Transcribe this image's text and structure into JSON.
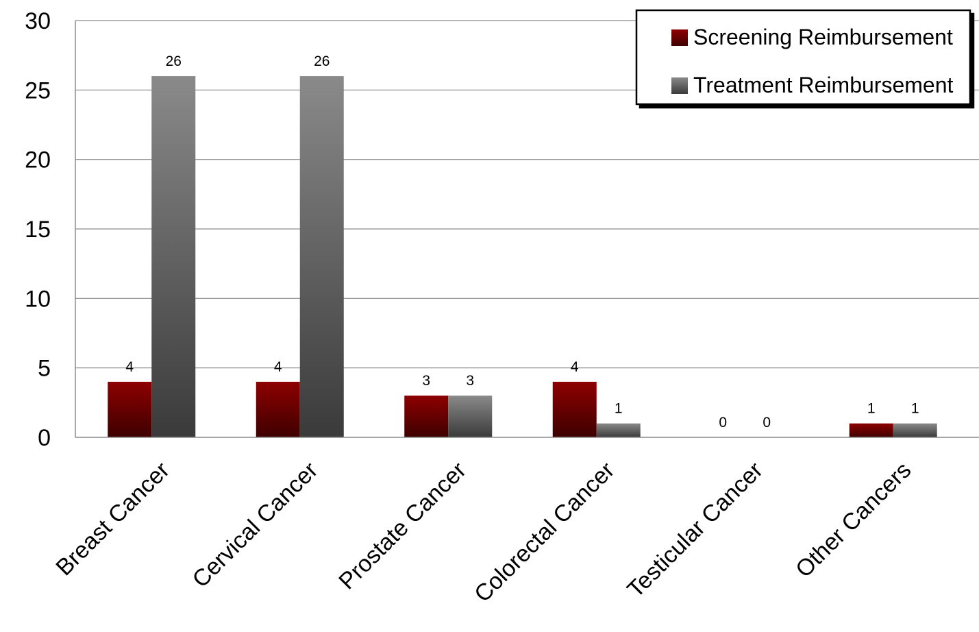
{
  "chart_data": {
    "type": "bar",
    "categories": [
      "Breast Cancer",
      "Cervical Cancer",
      "Prostate Cancer",
      "Colorectal Cancer",
      "Testicular Cancer",
      "Other Cancers"
    ],
    "series": [
      {
        "name": "Screening Reimbursement",
        "values": [
          4,
          4,
          3,
          4,
          0,
          1
        ],
        "color": "#8b0000"
      },
      {
        "name": "Treatment Reimbursement",
        "values": [
          26,
          26,
          3,
          1,
          0,
          1
        ],
        "color": "#7a7a7a"
      }
    ],
    "title": "",
    "xlabel": "",
    "ylabel": "",
    "ylim": [
      0,
      30
    ],
    "yticks": [
      0,
      5,
      10,
      15,
      20,
      25,
      30
    ],
    "grid": true,
    "legend_position": "top-right",
    "data_labels": true
  }
}
